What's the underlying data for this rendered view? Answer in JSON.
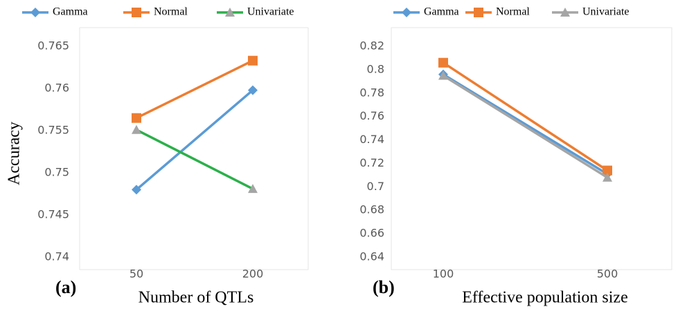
{
  "chart_data": [
    {
      "type": "line",
      "panel_label": "(a)",
      "x_label": "Number of QTLs",
      "y_label": "Accuracy",
      "categories": [
        "50",
        "200"
      ],
      "ylim": [
        0.74,
        0.765
      ],
      "yticks": [
        0.74,
        0.745,
        0.75,
        0.755,
        0.76,
        0.765
      ],
      "series": [
        {
          "name": "Gamma",
          "color": "#5b9bd5",
          "marker": "diamond",
          "marker_color": "#5b9bd5",
          "values": [
            0.748,
            0.7598
          ]
        },
        {
          "name": "Normal",
          "color": "#ed7d31",
          "marker": "square",
          "marker_color": "#ed7d31",
          "values": [
            0.7565,
            0.7633
          ]
        },
        {
          "name": "Univariate",
          "color": "#2bb04a",
          "marker": "triangle",
          "marker_color": "#a5a5a5",
          "values": [
            0.7551,
            0.7481
          ]
        }
      ]
    },
    {
      "type": "line",
      "panel_label": "(b)",
      "x_label": "Effective population size",
      "categories": [
        "100",
        "500"
      ],
      "ylim": [
        0.64,
        0.82
      ],
      "yticks": [
        0.64,
        0.66,
        0.68,
        0.7,
        0.72,
        0.74,
        0.76,
        0.78,
        0.8,
        0.82
      ],
      "series": [
        {
          "name": "Gamma",
          "color": "#5b9bd5",
          "marker": "diamond",
          "marker_color": "#5b9bd5",
          "values": [
            0.796,
            0.711
          ]
        },
        {
          "name": "Normal",
          "color": "#ed7d31",
          "marker": "square",
          "marker_color": "#ed7d31",
          "values": [
            0.806,
            0.714
          ]
        },
        {
          "name": "Univariate",
          "color": "#a5a5a5",
          "marker": "triangle",
          "marker_color": "#a5a5a5",
          "values": [
            0.795,
            0.708
          ]
        }
      ]
    }
  ]
}
